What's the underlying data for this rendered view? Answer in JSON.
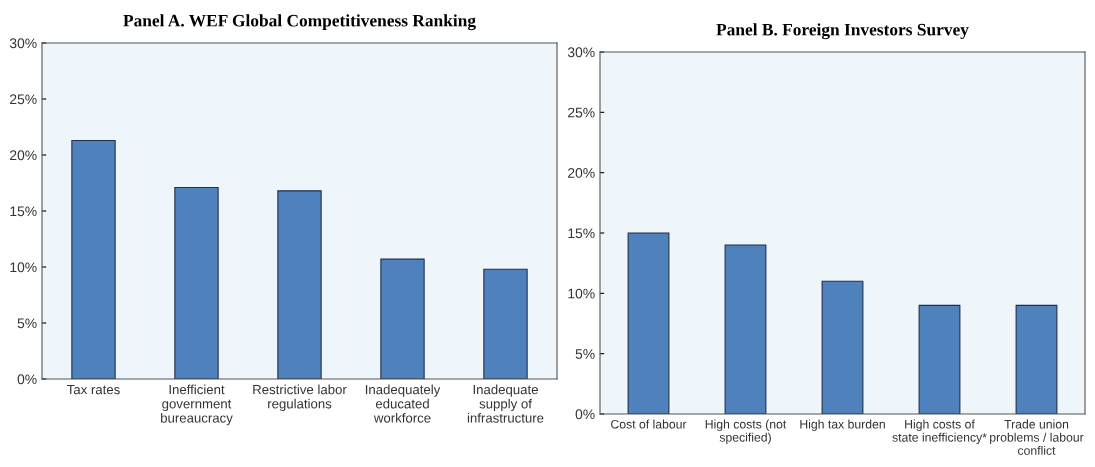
{
  "chart_data": [
    {
      "type": "bar",
      "title": "Panel A. WEF Global Competitiveness Ranking",
      "categories": [
        "Tax rates",
        "Inefficient\ngovernment\nbureaucracy",
        "Restrictive labor\nregulations",
        "Inadequately\neducated\nworkforce",
        "Inadequate\nsupply of\ninfrastructure"
      ],
      "values": [
        21.3,
        17.1,
        16.8,
        10.7,
        9.8
      ],
      "color": "#4f81bd",
      "ylim": [
        0,
        30
      ],
      "yticks": [
        {
          "value": 0,
          "label": "0%"
        },
        {
          "value": 5,
          "label": "5%"
        },
        {
          "value": 10,
          "label": "10%"
        },
        {
          "value": 15,
          "label": "15%"
        },
        {
          "value": 20,
          "label": "20%"
        },
        {
          "value": 25,
          "label": "25%"
        },
        {
          "value": 30,
          "label": "30%"
        }
      ],
      "grid": false
    },
    {
      "type": "bar",
      "title": "Panel B. Foreign Investors Survey",
      "categories": [
        "Cost of labour",
        "High costs (not\nspecified)",
        "High tax burden",
        "High costs of\nstate inefficiency*",
        "Trade union\nproblems / labour\nconflict"
      ],
      "values": [
        15,
        14,
        11,
        9,
        9
      ],
      "color": "#4f81bd",
      "ylim": [
        0,
        30
      ],
      "yticks": [
        {
          "value": 0,
          "label": "0%"
        },
        {
          "value": 5,
          "label": "5%"
        },
        {
          "value": 10,
          "label": "10%"
        },
        {
          "value": 15,
          "label": "15%"
        },
        {
          "value": 20,
          "label": "20%"
        },
        {
          "value": 25,
          "label": "25%"
        },
        {
          "value": 30,
          "label": "30%"
        }
      ],
      "grid": false
    }
  ]
}
